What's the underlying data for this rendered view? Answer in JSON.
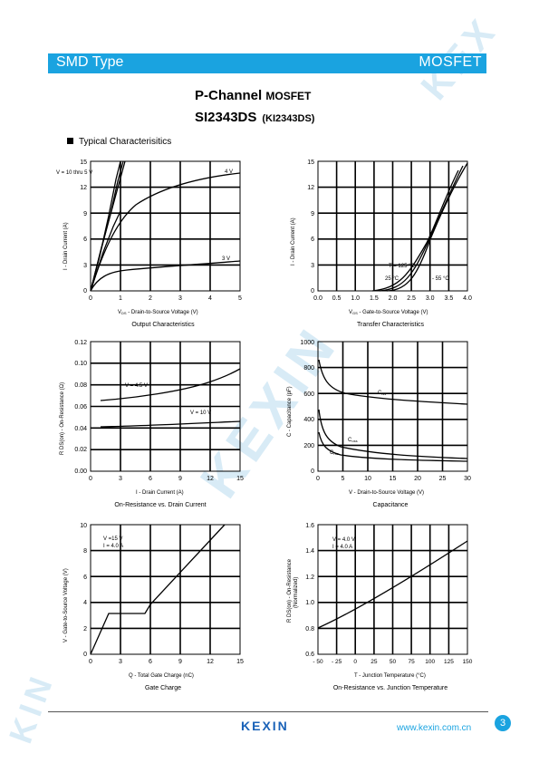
{
  "header": {
    "left": "SMD Type",
    "right": "MOSFET"
  },
  "title": {
    "line1_main": "P-Channel",
    "line1_sub": "MOSFET",
    "line2_main": "SI2343DS",
    "line2_sub": "(KI2343DS)"
  },
  "section": "Typical  Characterisitics",
  "footer": {
    "logo": "KEXIN",
    "url": "www.kexin.com.cn",
    "page": "3"
  },
  "watermark": "KEXIN",
  "charts": {
    "output": {
      "caption": "Output Characteristics",
      "xlabel_main": "V",
      "xlabel_sub": "DS",
      "xlabel_rest": " - Drain-to-Source Voltage (V)",
      "ylabel": "I  - Drain Current (A)",
      "xticks": [
        "0",
        "1",
        "2",
        "3",
        "4",
        "5"
      ],
      "yticks": [
        "0",
        "3",
        "6",
        "9",
        "12",
        "15"
      ],
      "labels": {
        "vgs": "V   = 10 thru 5 V",
        "vgs_sub": "GS",
        "v4": "4 V",
        "v3": "3 V"
      }
    },
    "transfer": {
      "caption": "Transfer Characteristics",
      "xlabel_main": "V",
      "xlabel_sub": "GS",
      "xlabel_rest": " - Gate-to-Source Voltage (V)",
      "ylabel": "I  - Drain Current (A)",
      "xticks": [
        "0.0",
        "0.5",
        "1.0",
        "1.5",
        "2.0",
        "2.5",
        "3.0",
        "3.5",
        "4.0"
      ],
      "yticks": [
        "0",
        "3",
        "6",
        "9",
        "12",
        "15"
      ],
      "labels": {
        "tc": "T  = 125 °C",
        "t25": "25 °C",
        "tm55": "- 55 °C"
      }
    },
    "ron": {
      "caption": "On-Resistance vs. Drain Current",
      "xlabel": "I  - Drain Current (A)",
      "ylabel": "R DS(on) - On-Resistance (Ω)",
      "xticks": [
        "0",
        "3",
        "6",
        "9",
        "12",
        "15"
      ],
      "yticks": [
        "0.00",
        "0.02",
        "0.04",
        "0.06",
        "0.08",
        "0.10",
        "0.12"
      ],
      "labels": {
        "a": "V   = 4.5 V",
        "b": "V   = 10 V"
      }
    },
    "cap": {
      "caption": "Capacitance",
      "xlabel": "V   - Drain-to-Source Voltage (V)",
      "ylabel": "C - Capacitance (pF)",
      "xticks": [
        "0",
        "5",
        "10",
        "15",
        "20",
        "25",
        "30"
      ],
      "yticks": [
        "0",
        "200",
        "400",
        "600",
        "800",
        "1000"
      ],
      "labels": {
        "ciss": "C",
        "coss": "C",
        "crss": "C"
      }
    },
    "gate": {
      "caption": "Gate Charge",
      "xlabel": "Q  - Total Gate Charge (nC)",
      "ylabel": "V   - Gate-to-Source Voltage (V)",
      "xticks": [
        "0",
        "3",
        "6",
        "9",
        "12",
        "15"
      ],
      "yticks": [
        "0",
        "2",
        "4",
        "6",
        "8",
        "10"
      ],
      "labels": {
        "vds": "V   =15 V",
        "id": "I  = 4.0 A"
      }
    },
    "temp": {
      "caption": "On-Resistance vs. Junction Temperature",
      "xlabel": "T  - Junction Temperature (°C)",
      "ylabel1": "R DS(on) - On-Resistance",
      "ylabel2": "(Normalized)",
      "xticks": [
        "- 50",
        "- 25",
        "0",
        "25",
        "50",
        "75",
        "100",
        "125",
        "150"
      ],
      "yticks": [
        "0.6",
        "0.8",
        "1.0",
        "1.2",
        "1.4",
        "1.6"
      ],
      "labels": {
        "vgs": "V   = 4.0 V",
        "id": "I  = 4.0 A"
      }
    }
  }
}
